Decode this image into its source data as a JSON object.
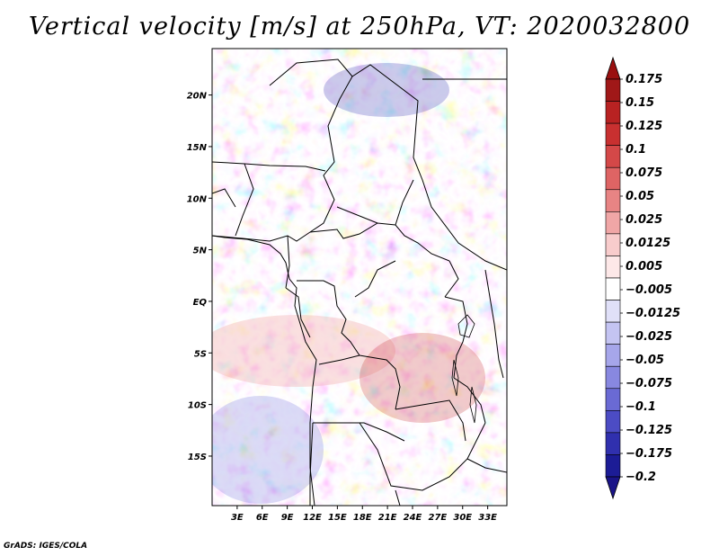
{
  "title": "Vertical velocity [m/s] at 250hPa, VT: 2020032800",
  "footer": "GrADS: IGES/COLA",
  "map": {
    "lon_range": [
      0,
      35.3
    ],
    "lat_range": [
      -19.8,
      24.5
    ],
    "x_ticks": [
      "3E",
      "6E",
      "9E",
      "12E",
      "15E",
      "18E",
      "21E",
      "24E",
      "27E",
      "30E",
      "33E"
    ],
    "x_tick_values": [
      3,
      6,
      9,
      12,
      15,
      18,
      21,
      24,
      27,
      30,
      33
    ],
    "y_ticks": [
      "20N",
      "15N",
      "10N",
      "5N",
      "EQ",
      "5S",
      "10S",
      "15S"
    ],
    "y_tick_values": [
      20,
      15,
      10,
      5,
      0,
      -5,
      -10,
      -15
    ]
  },
  "colorbar": {
    "labels": [
      "0.175",
      "0.15",
      "0.125",
      "0.1",
      "0.075",
      "0.05",
      "0.025",
      "0.0125",
      "0.005",
      "−0.005",
      "−0.0125",
      "−0.025",
      "−0.05",
      "−0.075",
      "−0.1",
      "−0.125",
      "−0.175",
      "−0.2"
    ],
    "colors": [
      "#a01818",
      "#b82222",
      "#c83030",
      "#d44848",
      "#de6464",
      "#e88484",
      "#f0a6a6",
      "#f8cccc",
      "#fde8e8",
      "#ffffff",
      "#e0e0f8",
      "#c4c4f2",
      "#a6a6ea",
      "#8888e0",
      "#6a6ad4",
      "#4c4cc4",
      "#3030ae",
      "#1c1c96"
    ],
    "top_cap_color": "#9a1010",
    "bottom_cap_color": "#1a1488"
  }
}
